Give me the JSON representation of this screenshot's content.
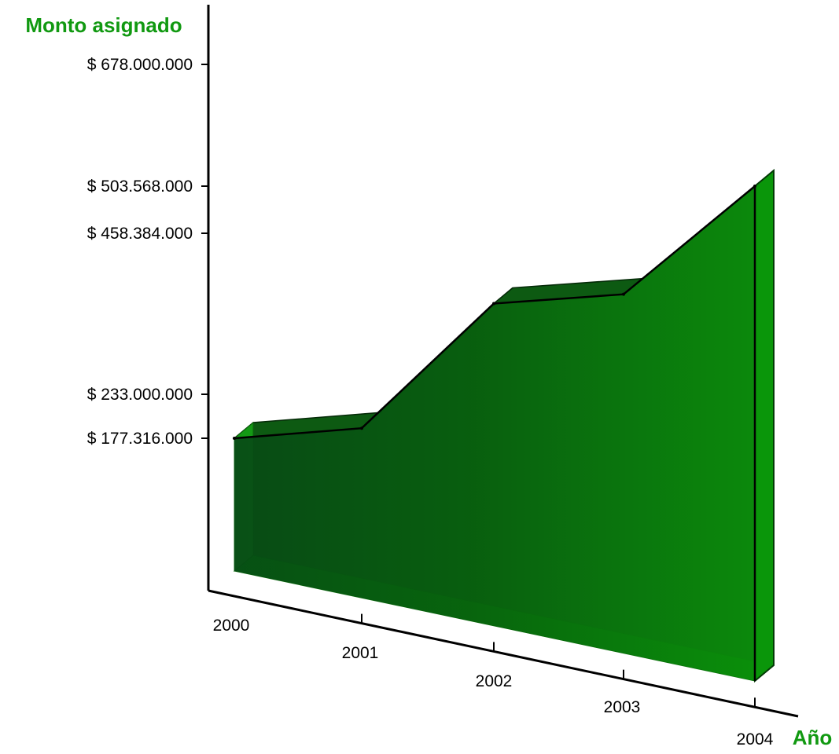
{
  "colors": {
    "accent": "#119911",
    "area_front": "#0b7a0b",
    "area_dark": "#08400f",
    "area_light": "#0fb40f",
    "axis": "#000000"
  },
  "chart_data": {
    "type": "area",
    "title": "",
    "ylabel": "Monto asignado",
    "xlabel": "Año",
    "categories": [
      "2000",
      "2001",
      "2002",
      "2003",
      "2004"
    ],
    "values": [
      177316000,
      190000000,
      360000000,
      373000000,
      503568000
    ],
    "ytick_values": [
      177316000,
      233000000,
      458384000,
      503568000,
      678000000
    ],
    "ytick_labels": [
      "$ 177.316.000",
      "$ 233.000.000",
      "$ 458.384.000",
      "$ 503.568.000",
      "$ 678.000.000"
    ],
    "ylim": [
      0,
      678000000
    ],
    "grid": false,
    "legend": "none",
    "style": "3d"
  }
}
